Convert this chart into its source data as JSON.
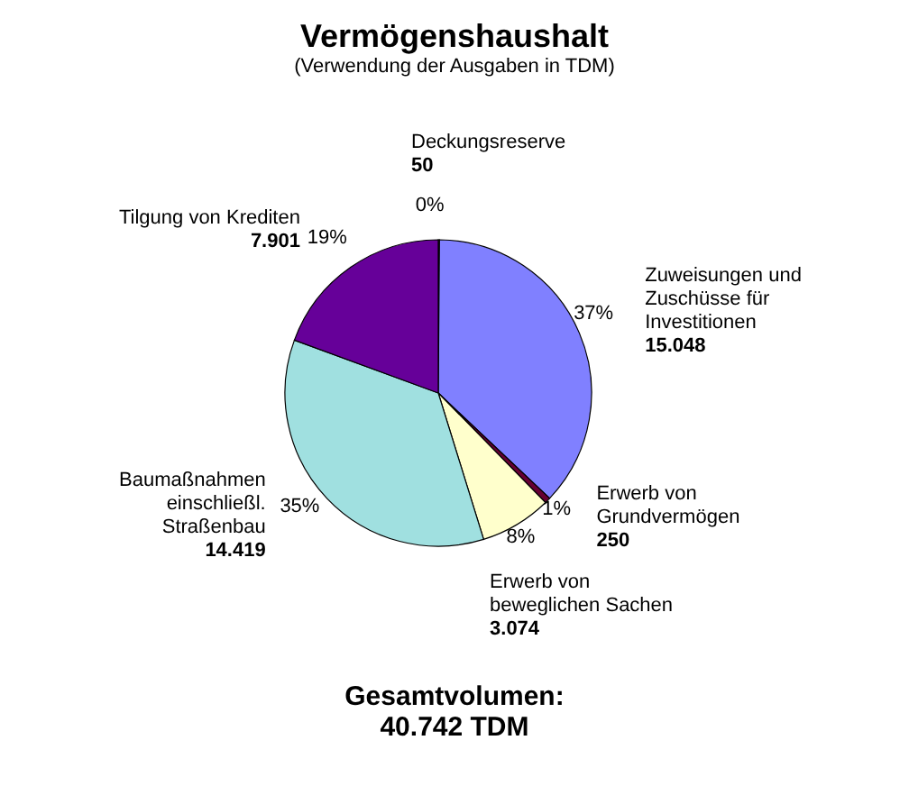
{
  "chart_data": {
    "type": "pie",
    "title": "Vermögenshaushalt",
    "subtitle": "(Verwendung der Ausgaben in TDM)",
    "categories": [
      "Deckungsreserve",
      "Zuweisungen und Zuschüsse für Investitionen",
      "Erwerb von Grundvermögen",
      "Erwerb von beweglichen Sachen",
      "Baumaßnahmen einschließl. Straßenbau",
      "Tilgung von Krediten"
    ],
    "values": [
      50,
      15048,
      250,
      3074,
      14419,
      7901
    ],
    "value_labels": [
      "50",
      "15.048",
      "250",
      "3.074",
      "14.419",
      "7.901"
    ],
    "colors": [
      "#ffffff",
      "#8080ff",
      "#660033",
      "#ffffcc",
      "#a0e0e0",
      "#660099"
    ],
    "annotations": [
      "0%",
      "37%",
      "1%",
      "8%",
      "35%",
      "19%",
      "Gesamtvolumen:",
      "40.742 TDM"
    ]
  }
}
